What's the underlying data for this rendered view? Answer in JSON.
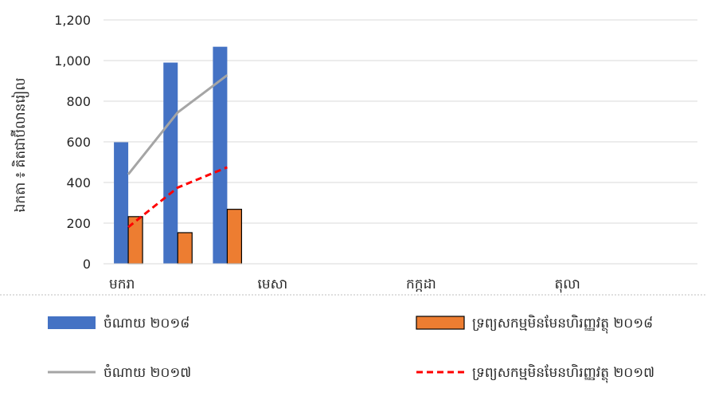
{
  "chart_data": {
    "type": "bar",
    "categories": [
      "មករា",
      "",
      "",
      "មេសា",
      "",
      "",
      "កក្កដា",
      "",
      "",
      "តុលា",
      "",
      ""
    ],
    "category_label_slots": [
      0,
      3,
      6,
      9
    ],
    "ylabel": "ឯកតា ៖ គិតជាប៊ីលានរៀល",
    "ylim": [
      0,
      1200
    ],
    "yticks": [
      0,
      200,
      400,
      600,
      800,
      1000,
      1200
    ],
    "ytick_labels": [
      "0",
      "200",
      "400",
      "600",
      "800",
      "1,000",
      "1,200"
    ],
    "grid": true,
    "legend_position": "bottom",
    "series": [
      {
        "name": "ចំណាយ ២០១៨",
        "kind": "bar",
        "color": "#4472C4",
        "values": [
          598,
          990,
          1068,
          null,
          null,
          null,
          null,
          null,
          null,
          null,
          null,
          null
        ]
      },
      {
        "name": "ទ្រព្យសកម្មមិនមែនហិរញ្ញវត្ថុ ២០១៨",
        "kind": "bar",
        "color": "#ED7D31",
        "outline": "#000000",
        "values": [
          232,
          153,
          268,
          null,
          null,
          null,
          null,
          null,
          null,
          null,
          null,
          null
        ]
      },
      {
        "name": "ចំណាយ ២០១៧",
        "kind": "line",
        "color": "#A5A5A5",
        "dash": "solid",
        "values": [
          440,
          745,
          928,
          null,
          null,
          null,
          null,
          null,
          null,
          null,
          null,
          null
        ]
      },
      {
        "name": "ទ្រព្យសកម្មមិនមែនហិរញ្ញវត្ថុ ២០១៧",
        "kind": "line",
        "color": "#FF0000",
        "dash": "dashed",
        "values": [
          180,
          375,
          475,
          null,
          null,
          null,
          null,
          null,
          null,
          null,
          null,
          null
        ]
      }
    ]
  }
}
